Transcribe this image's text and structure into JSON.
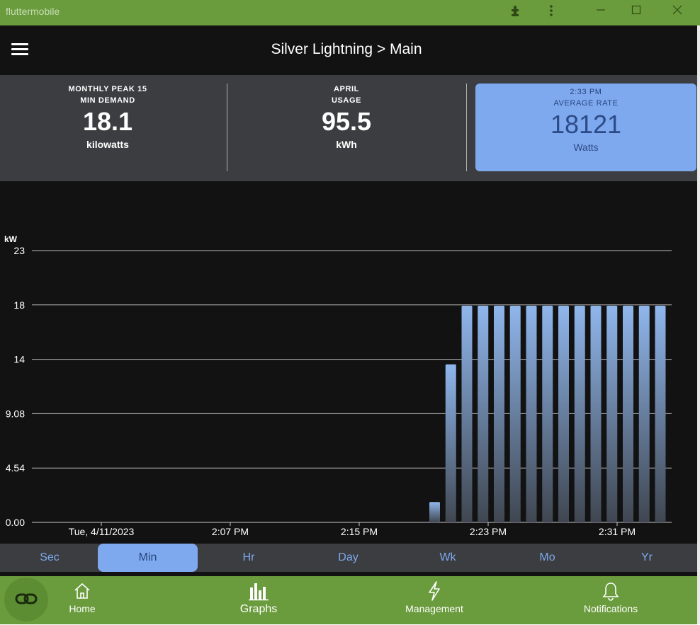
{
  "window": {
    "title": "fluttermobile",
    "controls": [
      "puzzle-icon",
      "more-vert-icon",
      "minimize-icon",
      "maximize-icon",
      "close-icon"
    ]
  },
  "header": {
    "title": "Silver Lightning > Main",
    "menu_icon": "menu-icon"
  },
  "stats": [
    {
      "label_line1": "MONTHLY PEAK 15",
      "label_line2": "MIN DEMAND",
      "value": "18.1",
      "unit": "kilowatts"
    },
    {
      "label_line1": "APRIL",
      "label_line2": "USAGE",
      "value": "95.5",
      "unit": "kWh"
    },
    {
      "label_line1": "2:33 PM",
      "label_line2": "AVERAGE RATE",
      "value": "18121",
      "unit": "Watts"
    }
  ],
  "chart_data": {
    "type": "bar",
    "ylabel": "kW",
    "ylim": [
      0,
      23
    ],
    "yticks": [
      "0.00",
      "4.54",
      "9.08",
      "14",
      "18",
      "23"
    ],
    "ytick_values": [
      0,
      4.54,
      9.08,
      13.62,
      18.16,
      22.7
    ],
    "grid": true,
    "xlabels": [
      {
        "text": "Tue, 4/11/2023",
        "minute": 0
      },
      {
        "text": "2:07 PM",
        "minute": 8
      },
      {
        "text": "2:15 PM",
        "minute": 16
      },
      {
        "text": "2:23 PM",
        "minute": 24
      },
      {
        "text": "2:31 PM",
        "minute": 32
      }
    ],
    "x_minutes": [
      20,
      21,
      22,
      23,
      24,
      25,
      26,
      27,
      28,
      29,
      30,
      31,
      32,
      33,
      34
    ],
    "values": [
      1.7,
      13.2,
      18.1,
      18.1,
      18.1,
      18.1,
      18.1,
      18.1,
      18.1,
      18.1,
      18.1,
      18.1,
      18.1,
      18.1,
      18.1
    ],
    "bar_color": "#7ea9ef"
  },
  "periods": {
    "items": [
      "Sec",
      "Min",
      "Hr",
      "Day",
      "Wk",
      "Mo",
      "Yr"
    ],
    "selected": "Min"
  },
  "nav": {
    "items": [
      {
        "label": "Home",
        "icon": "home-icon"
      },
      {
        "label": "Graphs",
        "icon": "bar-chart-icon"
      },
      {
        "label": "Management",
        "icon": "lightning-icon"
      },
      {
        "label": "Notifications",
        "icon": "bell-icon"
      }
    ],
    "fab_icon": "link-icon"
  },
  "colors": {
    "titlebar": "#6a9b3c",
    "accent": "#7ea9ef",
    "panel": "#3b3d40",
    "background": "#121212"
  }
}
